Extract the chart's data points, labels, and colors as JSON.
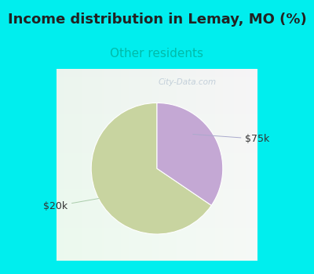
{
  "title": "Income distribution in Lemay, MO (%)",
  "subtitle": "Other residents",
  "title_fontsize": 13,
  "subtitle_fontsize": 11,
  "subtitle_color": "#00BBAA",
  "title_color": "#222222",
  "background_color": "#00EEEE",
  "chart_bg_color": "#E8F5EE",
  "slices": [
    0.655,
    0.345
  ],
  "labels": [
    "$20k",
    "$75k"
  ],
  "slice_colors": [
    "#C8D4A0",
    "#C4A8D4"
  ],
  "start_angle": 90,
  "watermark": "City-Data.com"
}
